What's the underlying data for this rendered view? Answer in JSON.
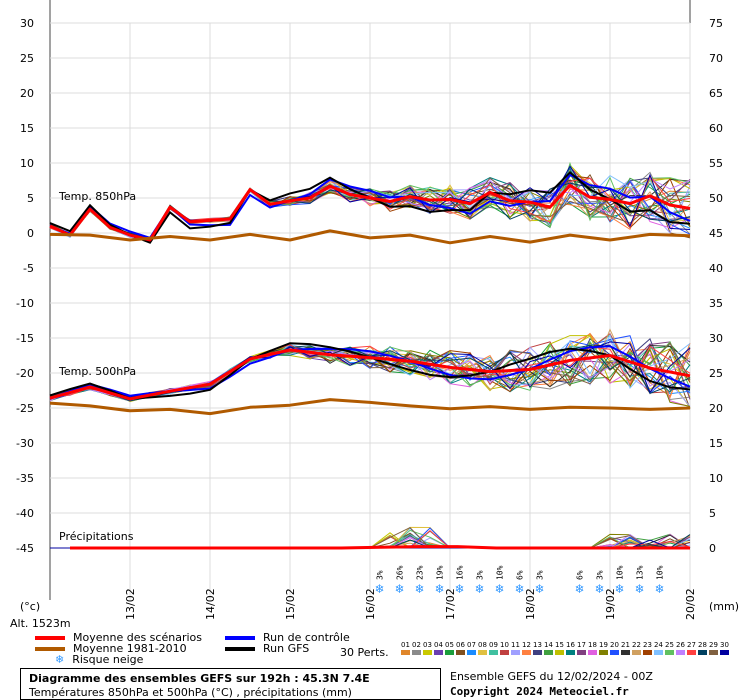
{
  "chart_data": {
    "type": "line",
    "x_dates": [
      "13/02",
      "14/02",
      "15/02",
      "16/02",
      "17/02",
      "18/02",
      "19/02",
      "20/02"
    ],
    "left_axis_ticks": [
      30,
      25,
      20,
      15,
      10,
      5,
      0,
      -5,
      -10,
      -15,
      -20,
      -25,
      -30,
      -35,
      -40,
      -45
    ],
    "right_axis_ticks": [
      75,
      70,
      65,
      60,
      55,
      50,
      45,
      40,
      35,
      30,
      25,
      20,
      15,
      10,
      5,
      0
    ],
    "left_unit": "(°c)",
    "right_unit": "(mm)",
    "altitude_label": "Alt. 1523m",
    "panel_labels": {
      "t850": "Temp. 850hPa",
      "t500": "Temp. 500hPa",
      "precip": "Précipitations"
    },
    "series": [
      {
        "name": "Moyenne des scénarios (850hPa)",
        "color": "#ff0000",
        "x": [
          0,
          0.25,
          0.5,
          0.75,
          1,
          1.25,
          1.5,
          1.75,
          2,
          2.25,
          2.5,
          2.75,
          3,
          3.25,
          3.5,
          3.75,
          4,
          4.25,
          4.5,
          4.75,
          5,
          5.25,
          5.5,
          5.75,
          6,
          6.25,
          6.5,
          6.75,
          7,
          7.25,
          7.5,
          7.75,
          8
        ],
        "y": [
          1,
          -0.3,
          3.4,
          0.8,
          -0.3,
          -1,
          3.7,
          1.6,
          1.8,
          2,
          6.2,
          4.1,
          4.6,
          5,
          6.7,
          5.5,
          5,
          4.5,
          5.2,
          4.7,
          4.8,
          4.2,
          5.8,
          4.6,
          4.4,
          3.7,
          6.8,
          5.1,
          4.8,
          4.2,
          5.3,
          4,
          3.5
        ]
      },
      {
        "name": "Moyenne 1981-2010 (850hPa)",
        "color": "#b05a00",
        "x": [
          0,
          0.5,
          1,
          1.5,
          2,
          2.5,
          3,
          3.5,
          4,
          4.5,
          5,
          5.5,
          6,
          6.5,
          7,
          7.5,
          8
        ],
        "y": [
          -0.2,
          -0.3,
          -1,
          -0.5,
          -1,
          -0.2,
          -1,
          0.3,
          -0.7,
          -0.3,
          -1.4,
          -0.5,
          -1.3,
          -0.3,
          -1,
          -0.2,
          -0.4
        ]
      },
      {
        "name": "Moyenne des scénarios (500hPa)",
        "color": "#ff0000",
        "x": [
          0,
          0.5,
          1,
          1.5,
          2,
          2.5,
          3,
          3.5,
          4,
          4.5,
          5,
          5.5,
          6,
          6.5,
          7,
          7.5,
          8
        ],
        "y": [
          -23.6,
          -22,
          -23.7,
          -22.6,
          -21.6,
          -18,
          -16.7,
          -17.4,
          -17.8,
          -18.3,
          -19.2,
          -19.8,
          -19.5,
          -18.2,
          -17.5,
          -19.3,
          -20.4
        ]
      },
      {
        "name": "Moyenne 1981-2010 (500hPa)",
        "color": "#b05a00",
        "x": [
          0,
          0.5,
          1,
          1.5,
          2,
          2.5,
          3,
          3.5,
          4,
          4.5,
          5,
          5.5,
          6,
          6.5,
          7,
          7.5,
          8
        ],
        "y": [
          -24.3,
          -24.7,
          -25.4,
          -25.2,
          -25.8,
          -24.9,
          -24.6,
          -23.8,
          -24.2,
          -24.7,
          -25.1,
          -24.8,
          -25.2,
          -24.9,
          -25,
          -25.2,
          -25
        ]
      }
    ],
    "precip_mean_mm": [
      0,
      0,
      0,
      0,
      0,
      0,
      0,
      0,
      0.1,
      0.2,
      0.2,
      0,
      0,
      0,
      0,
      0,
      0
    ],
    "snow_risk": [
      {
        "x": 4.12,
        "pct": "3%"
      },
      {
        "x": 4.37,
        "pct": "26%"
      },
      {
        "x": 4.62,
        "pct": "23%"
      },
      {
        "x": 4.87,
        "pct": "19%"
      },
      {
        "x": 5.12,
        "pct": "16%"
      },
      {
        "x": 5.37,
        "pct": "3%"
      },
      {
        "x": 5.62,
        "pct": "10%"
      },
      {
        "x": 5.87,
        "pct": "6%"
      },
      {
        "x": 6.12,
        "pct": "3%"
      },
      {
        "x": 6.62,
        "pct": "6%"
      },
      {
        "x": 6.87,
        "pct": "3%"
      },
      {
        "x": 7.12,
        "pct": "10%"
      },
      {
        "x": 7.37,
        "pct": "13%"
      },
      {
        "x": 7.62,
        "pct": "10%"
      }
    ],
    "xlabel": "",
    "ylabel": ""
  },
  "legend": {
    "mean": "Moyenne des scénarios",
    "climo": "Moyenne 1981-2010",
    "snow": "Risque neige",
    "control": "Run de contrôle",
    "gfs": "Run GFS",
    "perts": "30 Perts.",
    "colors": {
      "mean": "#ff0000",
      "climo": "#b05a00",
      "control": "#0000ff",
      "gfs": "#000000"
    }
  },
  "perturbations": {
    "labels": [
      "01",
      "02",
      "03",
      "04",
      "05",
      "06",
      "07",
      "08",
      "09",
      "10",
      "11",
      "12",
      "13",
      "14",
      "15",
      "16",
      "17",
      "18",
      "19",
      "20",
      "21",
      "22",
      "23",
      "24",
      "25",
      "26",
      "27",
      "28",
      "29",
      "30"
    ],
    "colors": [
      "#e0862a",
      "#8a8a8a",
      "#c9c900",
      "#6b3fb0",
      "#1b9e3c",
      "#805020",
      "#1a8cff",
      "#e0c040",
      "#40c0a0",
      "#c04040",
      "#a0a0ff",
      "#ff8040",
      "#404080",
      "#40a040",
      "#c0c000",
      "#008080",
      "#804080",
      "#e060e0",
      "#808000",
      "#2050ff",
      "#303030",
      "#d0a060",
      "#a04000",
      "#80c0ff",
      "#60c060",
      "#c080ff",
      "#ff4040",
      "#004060",
      "#806040",
      "#0000a0"
    ]
  },
  "footer": {
    "title": "Diagramme des ensembles GEFS sur 192h : 45.3N 7.4E",
    "subtitle": "Températures 850hPa et 500hPa (°C) , précipitations (mm)",
    "run": "Ensemble GEFS du 12/02/2024 - 00Z",
    "copyright": "Copyright 2024 Meteociel.fr"
  }
}
